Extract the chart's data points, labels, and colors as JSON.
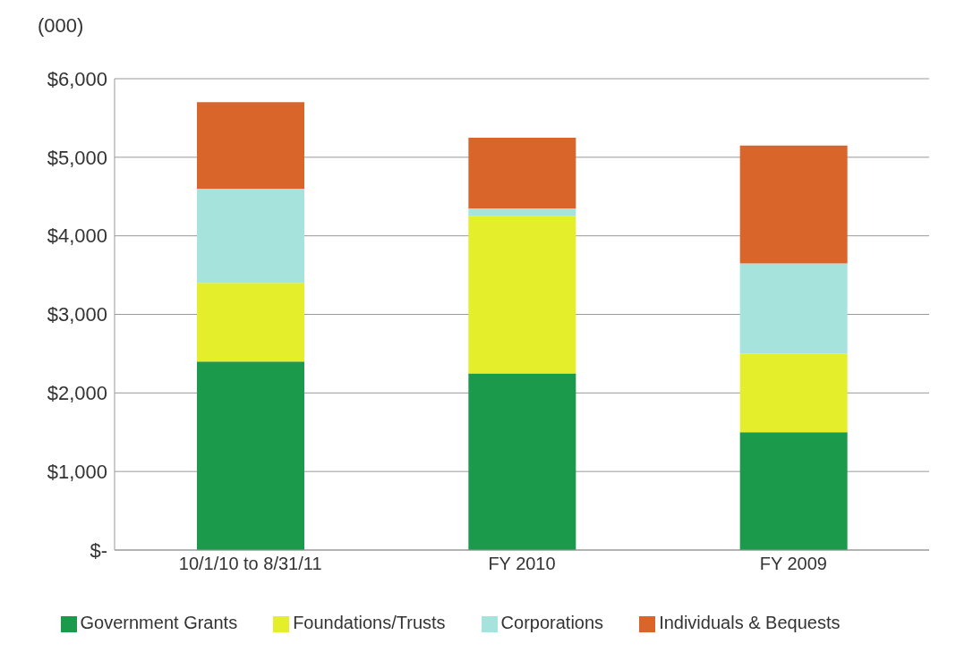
{
  "chart_data": {
    "type": "bar",
    "stacked": true,
    "ylabel": "(000)",
    "categories": [
      "10/1/10 to 8/31/11",
      "FY 2010",
      "FY 2009"
    ],
    "series": [
      {
        "name": "Government Grants",
        "color": "#1a9a4a",
        "values": [
          2400,
          2250,
          1500
        ]
      },
      {
        "name": "Foundations/Trusts",
        "color": "#e5ee2a",
        "values": [
          1000,
          2000,
          1000
        ]
      },
      {
        "name": "Corporations",
        "color": "#a6e3dc",
        "values": [
          1200,
          100,
          1150
        ]
      },
      {
        "name": "Individuals & Bequests",
        "color": "#d9652a",
        "values": [
          1100,
          900,
          1500
        ]
      }
    ],
    "ylim": [
      0,
      6000
    ],
    "yticks": [
      {
        "value": 0,
        "label": "$-"
      },
      {
        "value": 1000,
        "label": "$1,000"
      },
      {
        "value": 2000,
        "label": "$2,000"
      },
      {
        "value": 3000,
        "label": "$3,000"
      },
      {
        "value": 4000,
        "label": "$4,000"
      },
      {
        "value": 5000,
        "label": "$5,000"
      },
      {
        "value": 6000,
        "label": "$6,000"
      }
    ],
    "grid": "y",
    "legend": "bottom"
  }
}
